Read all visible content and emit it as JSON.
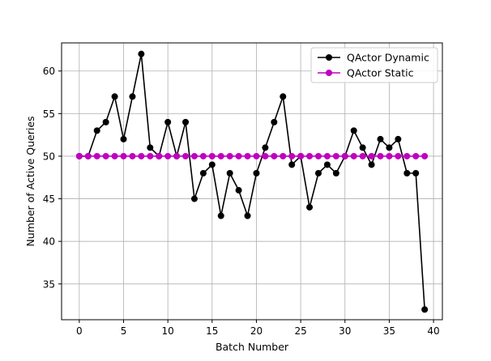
{
  "chart_data": {
    "type": "line",
    "title": "",
    "xlabel": "Batch Number",
    "ylabel": "Number of Active Queries",
    "xlim": [
      -2,
      41
    ],
    "ylim": [
      30.8,
      63.3
    ],
    "xticks": [
      0,
      5,
      10,
      15,
      20,
      25,
      30,
      35,
      40
    ],
    "yticks": [
      35,
      40,
      45,
      50,
      55,
      60
    ],
    "grid": true,
    "legend_position": "top-right",
    "x": [
      0,
      1,
      2,
      3,
      4,
      5,
      6,
      7,
      8,
      9,
      10,
      11,
      12,
      13,
      14,
      15,
      16,
      17,
      18,
      19,
      20,
      21,
      22,
      23,
      24,
      25,
      26,
      27,
      28,
      29,
      30,
      31,
      32,
      33,
      34,
      35,
      36,
      37,
      38,
      39
    ],
    "series": [
      {
        "name": "QActor Dynamic",
        "color": "#000000",
        "marker": "circle",
        "values": [
          50,
          50,
          53,
          54,
          57,
          52,
          57,
          62,
          51,
          50,
          54,
          50,
          54,
          45,
          48,
          49,
          43,
          48,
          46,
          43,
          48,
          51,
          54,
          57,
          49,
          50,
          44,
          48,
          49,
          48,
          50,
          53,
          51,
          49,
          52,
          51,
          52,
          48,
          48,
          32
        ]
      },
      {
        "name": "QActor Static",
        "color": "#bf00bf",
        "marker": "circle",
        "values": [
          50,
          50,
          50,
          50,
          50,
          50,
          50,
          50,
          50,
          50,
          50,
          50,
          50,
          50,
          50,
          50,
          50,
          50,
          50,
          50,
          50,
          50,
          50,
          50,
          50,
          50,
          50,
          50,
          50,
          50,
          50,
          50,
          50,
          50,
          50,
          50,
          50,
          50,
          50,
          50
        ]
      }
    ]
  }
}
